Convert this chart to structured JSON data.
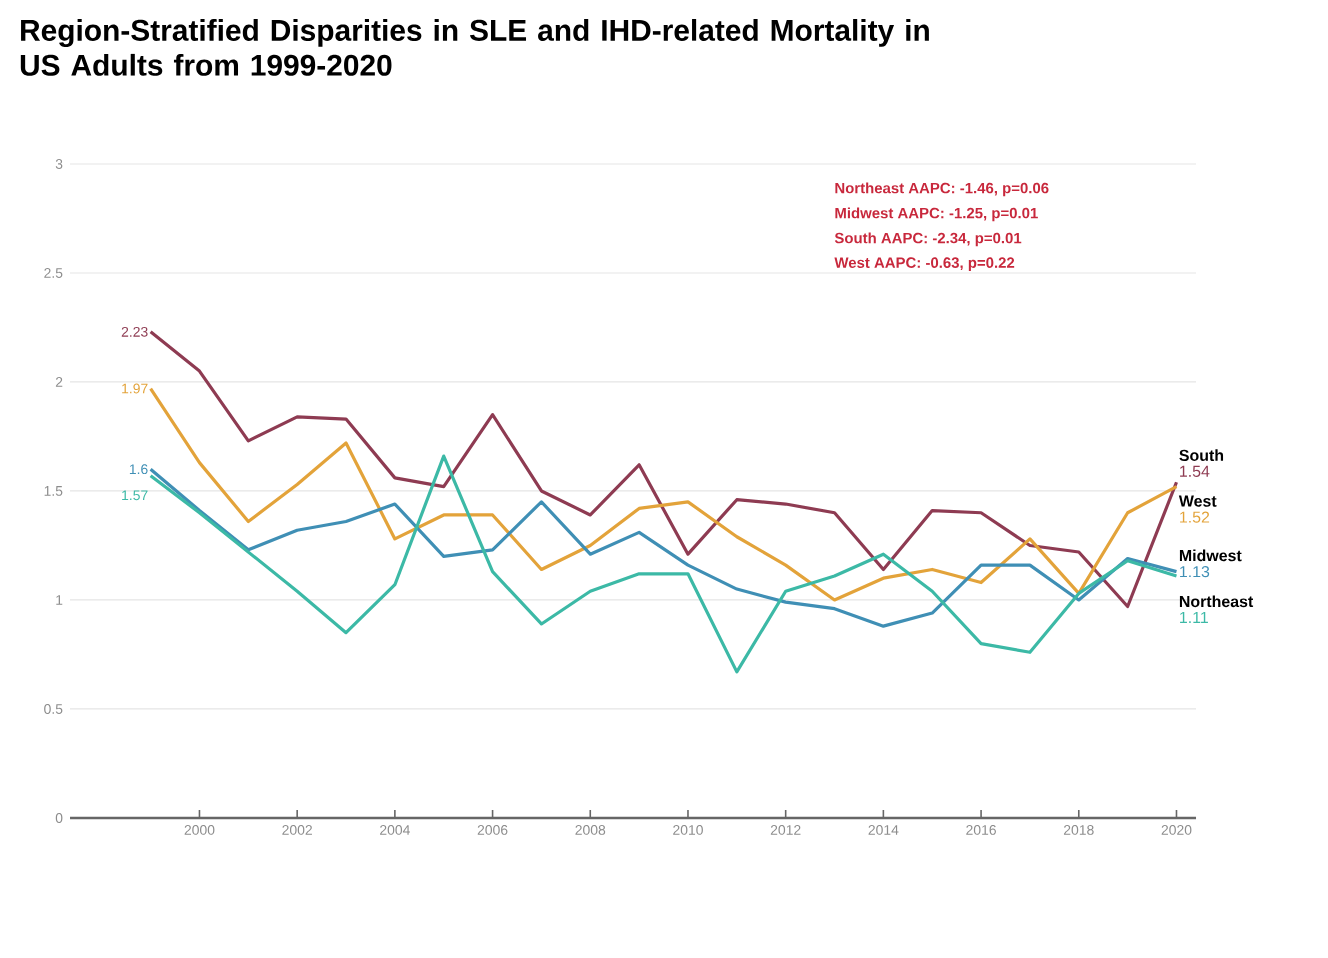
{
  "chart_data": {
    "type": "line",
    "title": "Region-Stratified Disparities in SLE and IHD-related Mortality in US Adults from 1999-2020",
    "x": [
      1999,
      2000,
      2001,
      2002,
      2003,
      2004,
      2005,
      2006,
      2007,
      2008,
      2009,
      2010,
      2011,
      2012,
      2013,
      2014,
      2015,
      2016,
      2017,
      2018,
      2019,
      2020
    ],
    "series": [
      {
        "name": "South",
        "color": "#8e3b52",
        "values": [
          2.23,
          2.05,
          1.73,
          1.84,
          1.83,
          1.56,
          1.52,
          1.85,
          1.5,
          1.39,
          1.62,
          1.21,
          1.46,
          1.44,
          1.4,
          1.14,
          1.41,
          1.4,
          1.25,
          1.22,
          0.97,
          1.54
        ],
        "value_labels": [
          "2.23",
          null,
          null,
          null,
          null,
          null,
          null,
          null,
          null,
          null,
          null,
          null,
          null,
          null,
          null,
          null,
          null,
          null,
          null,
          null,
          null,
          "1.54"
        ]
      },
      {
        "name": "West",
        "color": "#e3a33a",
        "values": [
          1.97,
          1.63,
          1.36,
          1.53,
          1.72,
          1.28,
          1.39,
          1.39,
          1.14,
          1.25,
          1.42,
          1.45,
          1.29,
          1.16,
          1.0,
          1.1,
          1.14,
          1.08,
          1.28,
          1.03,
          1.4,
          1.52
        ],
        "value_labels": [
          "1.97",
          null,
          null,
          null,
          null,
          null,
          null,
          null,
          null,
          null,
          null,
          null,
          null,
          null,
          null,
          null,
          null,
          null,
          null,
          null,
          null,
          "1.52"
        ]
      },
      {
        "name": "Midwest",
        "color": "#3f8fb5",
        "values": [
          1.6,
          1.41,
          1.23,
          1.32,
          1.36,
          1.44,
          1.2,
          1.23,
          1.45,
          1.21,
          1.31,
          1.16,
          1.05,
          0.99,
          0.96,
          0.88,
          0.94,
          1.16,
          1.16,
          1.0,
          1.19,
          1.13
        ],
        "value_labels": [
          "1.6",
          null,
          null,
          null,
          null,
          null,
          null,
          null,
          null,
          null,
          null,
          null,
          null,
          null,
          null,
          null,
          null,
          null,
          null,
          null,
          null,
          "1.13"
        ]
      },
      {
        "name": "Northeast",
        "color": "#3cb9a6",
        "values": [
          1.57,
          1.4,
          1.22,
          1.04,
          0.85,
          1.07,
          1.66,
          1.13,
          0.89,
          1.04,
          1.12,
          1.12,
          0.67,
          1.04,
          1.11,
          1.21,
          1.04,
          0.8,
          0.76,
          1.03,
          1.18,
          1.11
        ],
        "value_labels": [
          "1.57",
          null,
          null,
          null,
          null,
          null,
          null,
          null,
          null,
          null,
          null,
          null,
          null,
          null,
          null,
          null,
          null,
          null,
          null,
          null,
          null,
          "1.11"
        ]
      }
    ],
    "xlim": [
      1997.35,
      2020.4
    ],
    "ylim": [
      0,
      3
    ],
    "xticks": [
      2000,
      2002,
      2004,
      2006,
      2008,
      2010,
      2012,
      2014,
      2016,
      2018,
      2020
    ],
    "yticks": [
      0,
      0.5,
      1,
      1.5,
      2,
      2.5,
      3
    ],
    "grid": "y",
    "line_style": "solid",
    "annotations": [
      "Northeast AAPC: -1.46, p=0.06",
      "Midwest AAPC: -1.25, p=0.01",
      "South AAPC: -2.34, p=0.01",
      "West AAPC: -0.63, p=0.22"
    ]
  }
}
